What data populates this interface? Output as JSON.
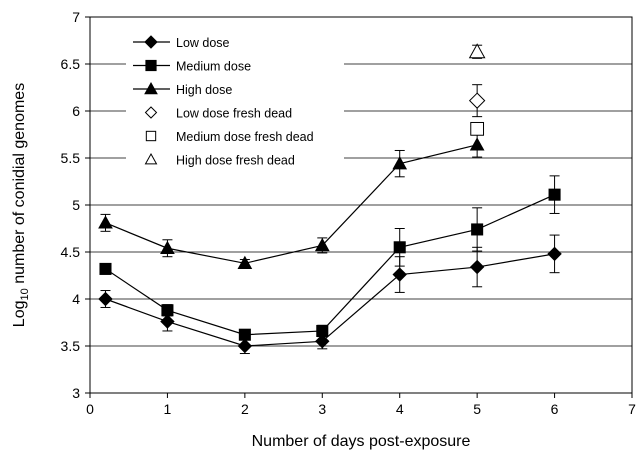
{
  "chart_data": {
    "type": "line",
    "xlabel": "Number of days post-exposure",
    "ylabel_prefix": "Log",
    "ylabel_sub": "10",
    "ylabel_rest": " number of conidial genomes",
    "xlim": [
      0,
      7
    ],
    "ylim": [
      3,
      7
    ],
    "x_ticks": [
      0,
      1,
      2,
      3,
      4,
      5,
      6,
      7
    ],
    "y_ticks": [
      3,
      3.5,
      4,
      4.5,
      5,
      5.5,
      6,
      6.5,
      7
    ],
    "y_tick_labels": [
      "3",
      "3.5",
      "4",
      "4.5",
      "5",
      "5.5",
      "6",
      "6.5",
      "7"
    ],
    "grid": "horizontal",
    "legend_position": "top-left",
    "series": [
      {
        "name": "Low dose",
        "marker": "diamond",
        "filled": true,
        "line": true,
        "x": [
          0.2,
          1,
          2,
          3,
          4,
          5,
          6
        ],
        "y": [
          4.0,
          3.76,
          3.5,
          3.55,
          4.26,
          4.34,
          4.48
        ],
        "err": [
          0.09,
          0.1,
          0.08,
          0.08,
          0.19,
          0.21,
          0.2
        ]
      },
      {
        "name": "Medium dose",
        "marker": "square",
        "filled": true,
        "line": true,
        "x": [
          0.2,
          1,
          2,
          3,
          4,
          5,
          6
        ],
        "y": [
          4.32,
          3.88,
          3.62,
          3.66,
          4.55,
          4.74,
          5.11
        ],
        "err": [
          0,
          0.06,
          0.05,
          0.06,
          0.2,
          0.23,
          0.2
        ]
      },
      {
        "name": "High dose",
        "marker": "triangle",
        "filled": true,
        "line": true,
        "x": [
          0.2,
          1,
          2,
          3,
          4,
          5
        ],
        "y": [
          4.81,
          4.54,
          4.38,
          4.57,
          5.44,
          5.64
        ],
        "err": [
          0.09,
          0.09,
          0.04,
          0.08,
          0.14,
          0.13
        ]
      },
      {
        "name": "Low dose fresh dead",
        "marker": "diamond",
        "filled": false,
        "line": false,
        "x": [
          5
        ],
        "y": [
          6.11
        ],
        "err": [
          0.17
        ]
      },
      {
        "name": "Medium dose fresh dead",
        "marker": "square",
        "filled": false,
        "line": false,
        "x": [
          5
        ],
        "y": [
          5.81
        ],
        "err": [
          0
        ]
      },
      {
        "name": "High dose fresh dead",
        "marker": "triangle",
        "filled": false,
        "line": false,
        "x": [
          5
        ],
        "y": [
          6.63
        ],
        "err": [
          0.07
        ]
      }
    ]
  }
}
